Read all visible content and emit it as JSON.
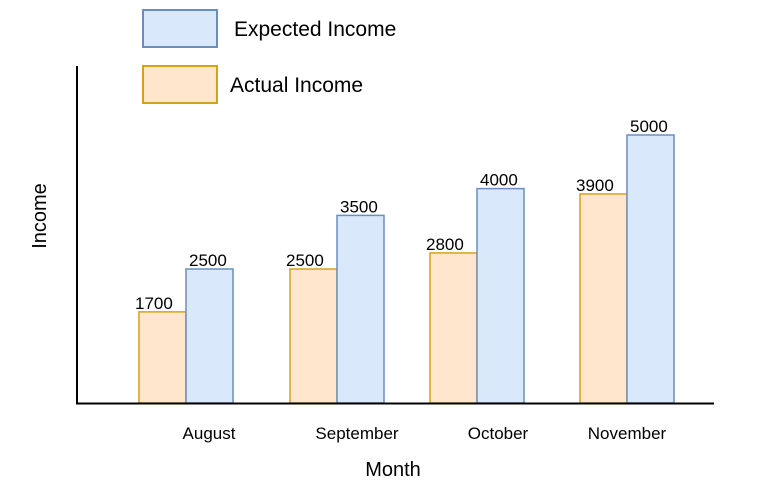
{
  "chart_data": {
    "type": "bar",
    "categories": [
      "August",
      "September",
      "October",
      "November"
    ],
    "series": [
      {
        "name": "Actual Income",
        "values": [
          1700,
          2500,
          2800,
          3900
        ],
        "fill": "#ffe6cc",
        "stroke": "#d6a21b"
      },
      {
        "name": "Expected Income",
        "values": [
          2500,
          3500,
          4000,
          5000
        ],
        "fill": "#dae8fc",
        "stroke": "#6c8ebf"
      }
    ],
    "title": "",
    "xlabel": "Month",
    "ylabel": "Income",
    "ylim": [
      0,
      5000
    ],
    "grid": false,
    "legend": "top-left"
  }
}
